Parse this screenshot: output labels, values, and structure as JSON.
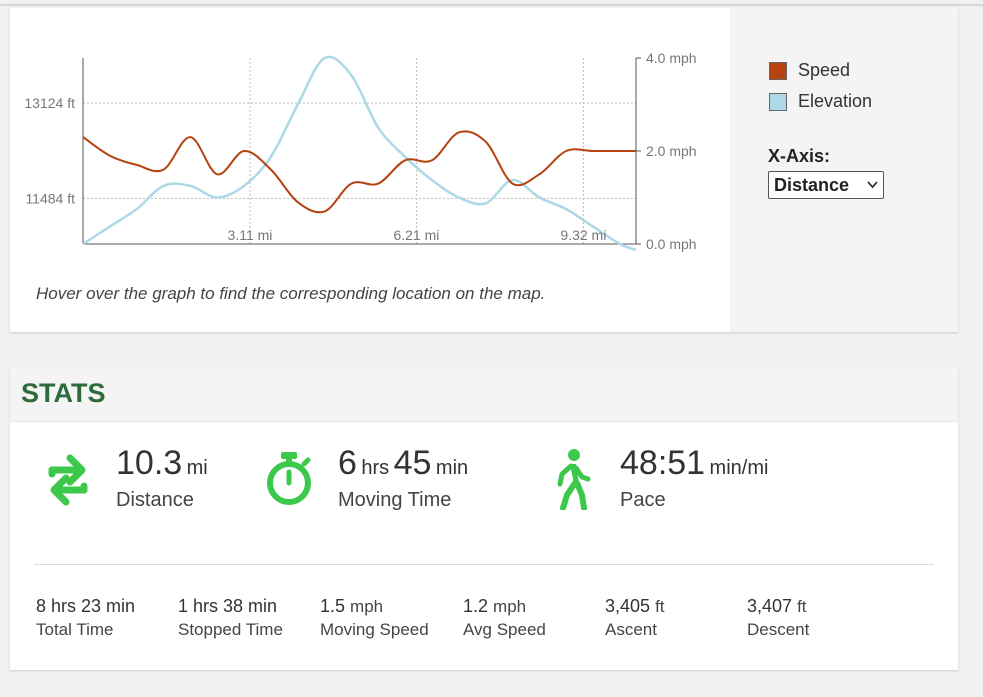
{
  "graph": {
    "hint": "Hover over the graph to find the corresponding location on the map.",
    "left_axis_ticks": [
      "13124 ft",
      "11484 ft"
    ],
    "right_axis_ticks": [
      "4.0 mph",
      "2.0 mph",
      "0.0 mph"
    ],
    "x_ticks": [
      "3.11 mi",
      "6.21 mi",
      "9.32 mi"
    ],
    "legend": [
      {
        "label": "Speed",
        "color": "#b5420f"
      },
      {
        "label": "Elevation",
        "color": "#add8e6"
      }
    ],
    "xaxis_label": "X-Axis:",
    "xaxis_selected": "Distance"
  },
  "chart_data": {
    "type": "line",
    "x_unit": "mi",
    "x": [
      0,
      0.5,
      1,
      1.5,
      2,
      2.5,
      3,
      3.5,
      4,
      4.5,
      5,
      5.5,
      6,
      6.5,
      7,
      7.5,
      8,
      8.5,
      9,
      9.5,
      10,
      10.3
    ],
    "series": [
      {
        "name": "Speed",
        "axis": "right",
        "color": "#b5420f",
        "values": [
          2.3,
          1.9,
          1.7,
          1.6,
          2.3,
          1.5,
          2.0,
          1.6,
          0.9,
          0.7,
          1.3,
          1.3,
          1.8,
          1.8,
          2.4,
          2.2,
          1.3,
          1.5,
          2.0,
          2.0,
          2.0,
          2.0
        ]
      },
      {
        "name": "Elevation",
        "axis": "left",
        "color": "#add8e6",
        "values": [
          10700,
          11000,
          11300,
          11700,
          11700,
          11500,
          11700,
          12200,
          13100,
          13900,
          13600,
          12700,
          12200,
          11800,
          11500,
          11400,
          11800,
          11500,
          11300,
          11000,
          10700,
          10600
        ]
      }
    ],
    "xlim": [
      0,
      10.3
    ],
    "ylim_left": [
      10700,
      13900
    ],
    "ylim_right": [
      0,
      4
    ],
    "left_ticks": [
      11484,
      13124
    ],
    "right_ticks": [
      0,
      2,
      4
    ],
    "x_ticks": [
      3.11,
      6.21,
      9.32
    ],
    "grid": true
  },
  "stats": {
    "title": "STATS",
    "distance": {
      "value": "10.3",
      "unit": "mi",
      "label": "Distance"
    },
    "moving_time": {
      "hrs": "6",
      "hrs_unit": "hrs",
      "min": "45",
      "min_unit": "min",
      "label": "Moving Time"
    },
    "pace": {
      "value": "48:51",
      "unit": "min/mi",
      "label": "Pace"
    },
    "small": [
      {
        "value": "8 hrs 23 min",
        "label": "Total Time"
      },
      {
        "value": "1 hrs 38 min",
        "label": "Stopped Time"
      },
      {
        "value": "1.5",
        "unit": "mph",
        "label": "Moving Speed"
      },
      {
        "value": "1.2",
        "unit": "mph",
        "label": "Avg Speed"
      },
      {
        "value": "3,405",
        "unit": "ft",
        "label": "Ascent"
      },
      {
        "value": "3,407",
        "unit": "ft",
        "label": "Descent"
      }
    ],
    "accent_color": "#3cc84a",
    "title_color": "#2e6b3c"
  }
}
